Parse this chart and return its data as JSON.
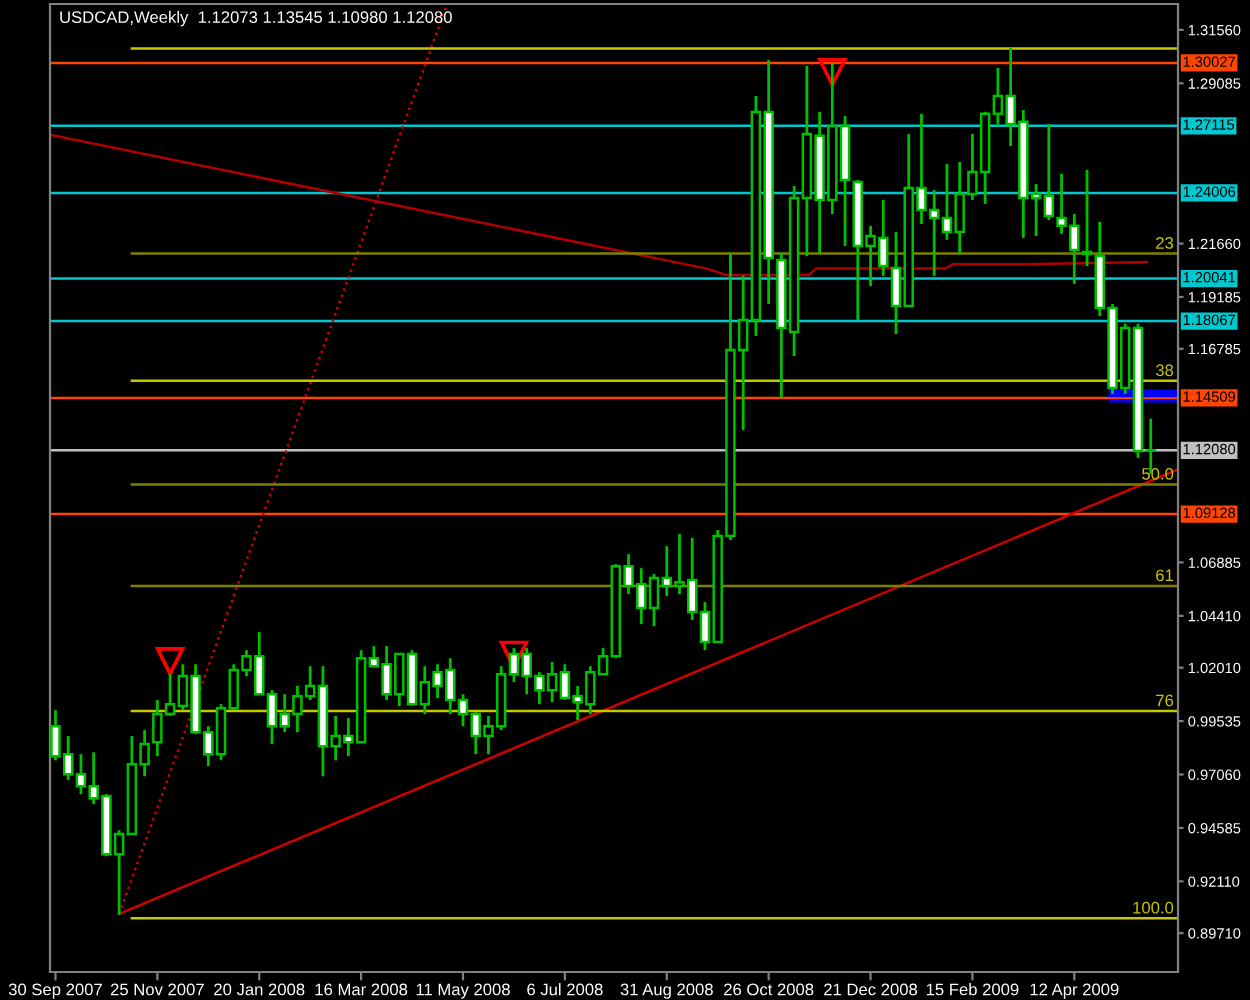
{
  "chart_data": {
    "type": "candlestick",
    "title": "USDCAD,Weekly  1.12073 1.13545 1.10980 1.12080",
    "color": "#00c000",
    "x": [
      "2007-09-30",
      "2007-10-07",
      "2007-10-14",
      "2007-10-21",
      "2007-10-28",
      "2007-11-04",
      "2007-11-11",
      "2007-11-18",
      "2007-11-25",
      "2007-12-02",
      "2007-12-09",
      "2007-12-16",
      "2007-12-23",
      "2007-12-30",
      "2008-01-06",
      "2008-01-13",
      "2008-01-20",
      "2008-01-27",
      "2008-02-03",
      "2008-02-10",
      "2008-02-17",
      "2008-02-24",
      "2008-03-02",
      "2008-03-09",
      "2008-03-16",
      "2008-03-23",
      "2008-03-30",
      "2008-04-06",
      "2008-04-13",
      "2008-04-20",
      "2008-04-27",
      "2008-05-04",
      "2008-05-11",
      "2008-05-18",
      "2008-05-25",
      "2008-06-01",
      "2008-06-08",
      "2008-06-15",
      "2008-06-22",
      "2008-06-29",
      "2008-07-06",
      "2008-07-13",
      "2008-07-20",
      "2008-07-27",
      "2008-08-03",
      "2008-08-10",
      "2008-08-17",
      "2008-08-24",
      "2008-08-31",
      "2008-09-07",
      "2008-09-14",
      "2008-09-21",
      "2008-09-28",
      "2008-10-05",
      "2008-10-12",
      "2008-10-19",
      "2008-10-26",
      "2008-11-02",
      "2008-11-09",
      "2008-11-16",
      "2008-11-23",
      "2008-11-30",
      "2008-12-07",
      "2008-12-14",
      "2008-12-21",
      "2008-12-28",
      "2009-01-04",
      "2009-01-11",
      "2009-01-18",
      "2009-01-25",
      "2009-02-01",
      "2009-02-08",
      "2009-02-15",
      "2009-02-22",
      "2009-03-01",
      "2009-03-08",
      "2009-03-15",
      "2009-03-22",
      "2009-03-29",
      "2009-04-05",
      "2009-04-12",
      "2009-04-19",
      "2009-04-26",
      "2009-05-03",
      "2009-05-10",
      "2009-05-17",
      "2009-05-24"
    ],
    "ohlc": [
      [
        0.993,
        1.0004,
        0.9772,
        0.9791
      ],
      [
        0.98,
        0.9884,
        0.968,
        0.9707
      ],
      [
        0.9707,
        0.98,
        0.9615,
        0.9652
      ],
      [
        0.9652,
        0.9809,
        0.9569,
        0.9596
      ],
      [
        0.9606,
        0.9615,
        0.9328,
        0.9337
      ],
      [
        0.9337,
        0.9448,
        0.9056,
        0.943
      ],
      [
        0.943,
        0.9884,
        0.943,
        0.9754
      ],
      [
        0.9754,
        0.9912,
        0.9698,
        0.9847
      ],
      [
        0.9856,
        1.0051,
        0.9791,
        0.9986
      ],
      [
        0.9986,
        1.0171,
        0.9977,
        1.0032
      ],
      [
        1.0023,
        1.0217,
        1.0004,
        1.0162
      ],
      [
        1.0162,
        1.0217,
        0.9893,
        0.9902
      ],
      [
        0.9902,
        0.993,
        0.9745,
        0.98
      ],
      [
        0.98,
        1.0032,
        0.9772,
        1.0013
      ],
      [
        1.0013,
        1.0217,
        1.0004,
        1.019
      ],
      [
        1.019,
        1.0282,
        1.0162,
        1.0254
      ],
      [
        1.0254,
        1.0366,
        1.0078,
        1.0078
      ],
      [
        1.0078,
        1.0097,
        0.9847,
        0.993
      ],
      [
        0.9986,
        1.0078,
        0.9902,
        0.993
      ],
      [
        0.9986,
        1.0116,
        0.9902,
        1.0069
      ],
      [
        1.0069,
        1.0208,
        1.0051,
        1.0116
      ],
      [
        1.0116,
        1.0208,
        0.9698,
        0.9837
      ],
      [
        0.9837,
        0.9977,
        0.9772,
        0.9884
      ],
      [
        0.9884,
        0.9967,
        0.9791,
        0.9856
      ],
      [
        0.9856,
        1.0282,
        0.9856,
        1.0245
      ],
      [
        1.0245,
        1.0301,
        1.0208,
        1.0208
      ],
      [
        1.0217,
        1.0301,
        1.0051,
        1.0078
      ],
      [
        1.0078,
        1.0264,
        1.0023,
        1.0264
      ],
      [
        1.0264,
        1.0282,
        1.0032,
        1.0032
      ],
      [
        1.0032,
        1.0208,
        0.9986,
        1.0134
      ],
      [
        1.018,
        1.0217,
        1.006,
        1.0116
      ],
      [
        1.019,
        1.0245,
        0.9986,
        1.0051
      ],
      [
        1.0051,
        1.0078,
        0.993,
        0.9986
      ],
      [
        0.9986,
        0.9995,
        0.98,
        0.9884
      ],
      [
        0.9884,
        0.9977,
        0.98,
        0.993
      ],
      [
        0.993,
        1.0208,
        0.9912,
        1.0171
      ],
      [
        1.0264,
        1.0292,
        1.0134,
        1.0171
      ],
      [
        1.0264,
        1.0292,
        1.0078,
        1.0162
      ],
      [
        1.0162,
        1.018,
        1.0032,
        1.0097
      ],
      [
        1.0097,
        1.0227,
        1.0041,
        1.0171
      ],
      [
        1.018,
        1.0217,
        1.0051,
        1.006
      ],
      [
        1.0069,
        1.0116,
        0.9958,
        1.0041
      ],
      [
        1.0032,
        1.0208,
        0.9986,
        1.018
      ],
      [
        1.0171,
        1.0292,
        1.0171,
        1.0254
      ],
      [
        1.0254,
        1.0681,
        1.0245,
        1.0671
      ],
      [
        1.0671,
        1.0727,
        1.0542,
        1.0579
      ],
      [
        1.0588,
        1.0662,
        1.0403,
        1.0477
      ],
      [
        1.0477,
        1.0635,
        1.0393,
        1.0616
      ],
      [
        1.0616,
        1.0764,
        1.0533,
        1.0579
      ],
      [
        1.0579,
        1.082,
        1.0542,
        1.0597
      ],
      [
        1.0607,
        1.0802,
        1.0422,
        1.0459
      ],
      [
        1.0459,
        1.0505,
        1.0282,
        1.032
      ],
      [
        1.032,
        1.0839,
        1.032,
        1.0811
      ],
      [
        1.0811,
        1.2118,
        1.0793,
        1.1673
      ],
      [
        1.1673,
        1.2016,
        1.1302,
        1.1812
      ],
      [
        1.1812,
        1.285,
        1.1738,
        1.2776
      ],
      [
        1.2776,
        1.3017,
        1.1886,
        1.2099
      ],
      [
        1.209,
        1.2118,
        1.145,
        1.1775
      ],
      [
        1.1756,
        1.2433,
        1.1645,
        1.2377
      ],
      [
        1.2377,
        1.2989,
        1.2108,
        1.2674
      ],
      [
        1.2665,
        1.2776,
        1.2118,
        1.2368
      ],
      [
        1.2368,
        1.2998,
        1.2303,
        1.2711
      ],
      [
        1.2711,
        1.2757,
        1.2155,
        1.2461
      ],
      [
        1.2451,
        1.2461,
        1.1812,
        1.2155
      ],
      [
        1.2155,
        1.2248,
        1.1969,
        1.2201
      ],
      [
        1.2192,
        1.2368,
        1.2016,
        1.2062
      ],
      [
        1.2053,
        1.222,
        1.1747,
        1.1877
      ],
      [
        1.1877,
        1.2674,
        1.1877,
        1.2424
      ],
      [
        1.2424,
        1.2767,
        1.2257,
        1.2322
      ],
      [
        1.2322,
        1.2414,
        1.2016,
        1.2285
      ],
      [
        1.2285,
        1.2535,
        1.2183,
        1.222
      ],
      [
        1.222,
        1.2544,
        1.2118,
        1.2396
      ],
      [
        1.2396,
        1.2674,
        1.2368,
        1.2498
      ],
      [
        1.2498,
        1.2776,
        1.235,
        1.2767
      ],
      [
        1.2767,
        1.298,
        1.2711,
        1.285
      ],
      [
        1.285,
        1.3073,
        1.2618,
        1.272
      ],
      [
        1.273,
        1.2785,
        1.2192,
        1.2377
      ],
      [
        1.2396,
        1.2442,
        1.2201,
        1.2377
      ],
      [
        1.2387,
        1.272,
        1.2275,
        1.2294
      ],
      [
        1.2285,
        1.2489,
        1.2211,
        1.2248
      ],
      [
        1.2248,
        1.2303,
        1.1979,
        1.2136
      ],
      [
        1.2118,
        1.2507,
        1.2062,
        1.2127
      ],
      [
        1.2108,
        1.2266,
        1.183,
        1.1867
      ],
      [
        1.1867,
        1.1886,
        1.1469,
        1.1497
      ],
      [
        1.1497,
        1.1794,
        1.1469,
        1.1775
      ],
      [
        1.1775,
        1.1794,
        1.1173,
        1.1205
      ],
      [
        1.12073,
        1.13545,
        1.1098,
        1.1208
      ]
    ],
    "colors": [
      "#ffffff",
      "#ffffff",
      "#ffffff",
      "#ffffff",
      "#ffffff",
      "#000000",
      "#000000",
      "#000000",
      "#000000",
      "#000000",
      "#000000",
      "#ffffff",
      "#ffffff",
      "#000000",
      "#000000",
      "#000000",
      "#ffffff",
      "#ffffff",
      "#ffffff",
      "#000000",
      "#000000",
      "#ffffff",
      "#000000",
      "#ffffff",
      "#000000",
      "#ffffff",
      "#ffffff",
      "#000000",
      "#ffffff",
      "#000000",
      "#ffffff",
      "#ffffff",
      "#ffffff",
      "#ffffff",
      "#000000",
      "#000000",
      "#ffffff",
      "#ffffff",
      "#ffffff",
      "#000000",
      "#ffffff",
      "#ffffff",
      "#000000",
      "#000000",
      "#000000",
      "#ffffff",
      "#ffffff",
      "#000000",
      "#ffffff",
      "#000000",
      "#ffffff",
      "#ffffff",
      "#000000",
      "#000000",
      "#000000",
      "#000000",
      "#ffffff",
      "#ffffff",
      "#000000",
      "#000000",
      "#ffffff",
      "#000000",
      "#ffffff",
      "#ffffff",
      "#000000",
      "#ffffff",
      "#ffffff",
      "#000000",
      "#ffffff",
      "#ffffff",
      "#ffffff",
      "#000000",
      "#000000",
      "#000000",
      "#000000",
      "#ffffff",
      "#ffffff",
      "#ffffff",
      "#ffffff",
      "#ffffff",
      "#ffffff",
      "#000000",
      "#ffffff",
      "#ffffff",
      "#000000",
      "#ffffff",
      "#000000"
    ],
    "series": [
      {
        "type": "line",
        "color": "#d00000",
        "x": [
          "2007-11-04",
          "2009-06-08"
        ],
        "values": [
          0.906,
          1.112
        ]
      },
      {
        "type": "line",
        "color": "#d00000",
        "line_style": "dotted",
        "x": [
          "2007-11-04",
          "2008-05-02"
        ],
        "values": [
          0.906,
          1.327
        ]
      },
      {
        "type": "line",
        "color": "#b00000",
        "x": [
          "2007-09-27",
          "2008-09-22",
          "2008-10-03",
          "2008-11-17",
          "2008-11-21",
          "2009-01-31",
          "2009-02-04",
          "2009-03-12",
          "2009-03-16",
          "2009-05-22"
        ],
        "values": [
          1.267,
          1.205,
          1.202,
          1.202,
          1.205,
          1.205,
          1.207,
          1.207,
          1.207,
          1.208
        ]
      },
      {
        "type": "line",
        "color": "#0000ff",
        "x": [
          "2009-05-01",
          "2009-06-08"
        ],
        "values": [
          1.146,
          1.146
        ],
        "lower": [
          1.143,
          1.143
        ],
        "upper": [
          1.149,
          1.149
        ]
      },
      {
        "type": "line",
        "color": "#c8c800",
        "x": [
          "2007-11-11",
          "2009-06-08"
        ],
        "values": [
          1.307,
          1.307
        ]
      },
      {
        "type": "line",
        "color": "#808000",
        "x": [
          "2007-11-11",
          "2009-06-08"
        ],
        "values": [
          1.212,
          1.212
        ]
      },
      {
        "type": "line",
        "color": "#c8c800",
        "x": [
          "2007-11-11",
          "2009-06-08"
        ],
        "values": [
          1.153,
          1.153
        ]
      },
      {
        "type": "line",
        "color": "#808000",
        "x": [
          "2007-11-11",
          "2009-06-08"
        ],
        "values": [
          1.105,
          1.105
        ]
      },
      {
        "type": "line",
        "color": "#808000",
        "x": [
          "2007-11-11",
          "2009-06-08"
        ],
        "values": [
          1.058,
          1.058
        ]
      },
      {
        "type": "line",
        "color": "#c8c800",
        "x": [
          "2007-11-11",
          "2009-06-08"
        ],
        "values": [
          1.0,
          1.0
        ]
      },
      {
        "type": "line",
        "color": "#c8c800",
        "x": [
          "2007-11-11",
          "2009-06-08"
        ],
        "values": [
          0.904,
          0.904
        ]
      },
      {
        "type": "scatter",
        "color": "#ff0000",
        "marker": "triangle",
        "x": [
          "2007-12-02",
          "2008-06-08",
          "2008-11-30"
        ],
        "values": [
          1.023,
          1.026,
          1.296
        ]
      }
    ],
    "ref_lines": [
      {
        "axis": "y",
        "value": 1.30027,
        "label": "1.30027",
        "color": "#ff4500"
      },
      {
        "axis": "y",
        "value": 1.27115,
        "label": "1.27115",
        "color": "#00c8d0"
      },
      {
        "axis": "y",
        "value": 1.24006,
        "label": "1.24006",
        "color": "#00c8d0"
      },
      {
        "axis": "y",
        "value": 1.20041,
        "label": "1.20041",
        "color": "#00c8d0"
      },
      {
        "axis": "y",
        "value": 1.18067,
        "label": "1.18067",
        "color": "#00c8d0"
      },
      {
        "axis": "y",
        "value": 1.14509,
        "label": "1.14509",
        "color": "#ff4500"
      },
      {
        "axis": "y",
        "value": 1.1208,
        "label": "1.12080",
        "color": "#c0c0c0"
      },
      {
        "axis": "y",
        "value": 1.09128,
        "label": "1.09128",
        "color": "#ff4500"
      }
    ],
    "annotations": [
      {
        "text": "23",
        "x": "2009-06-08",
        "y": 1.212
      },
      {
        "text": "38",
        "x": "2009-06-08",
        "y": 1.153
      },
      {
        "text": "50.0",
        "x": "2009-06-08",
        "y": 1.105
      },
      {
        "text": "61",
        "x": "2009-06-08",
        "y": 1.058
      },
      {
        "text": "76",
        "x": "2009-06-08",
        "y": 1.0
      },
      {
        "text": "100.0",
        "x": "2009-06-08",
        "y": 0.904
      }
    ],
    "xlim": [
      "2007-09-27",
      "2009-06-08"
    ],
    "xticks": [
      {
        "value": "2007-09-30",
        "label": "30 Sep 2007"
      },
      {
        "value": "2007-11-25",
        "label": "25 Nov 2007"
      },
      {
        "value": "2008-01-20",
        "label": "20 Jan 2008"
      },
      {
        "value": "2008-03-16",
        "label": "16 Mar 2008"
      },
      {
        "value": "2008-05-11",
        "label": "11 May 2008"
      },
      {
        "value": "2008-07-06",
        "label": "6 Jul 2008"
      },
      {
        "value": "2008-08-31",
        "label": "31 Aug 2008"
      },
      {
        "value": "2008-10-26",
        "label": "26 Oct 2008"
      },
      {
        "value": "2008-12-21",
        "label": "21 Dec 2008"
      },
      {
        "value": "2009-02-15",
        "label": "15 Feb 2009"
      },
      {
        "value": "2009-04-12",
        "label": "12 Apr 2009"
      }
    ],
    "ylim": [
      0.8791,
      1.3276
    ],
    "yticks": [
      {
        "value": 1.3156,
        "label": "1.31560"
      },
      {
        "value": 1.29085,
        "label": "1.29085"
      },
      {
        "value": 1.2166,
        "label": "1.21660"
      },
      {
        "value": 1.19185,
        "label": "1.19185"
      },
      {
        "value": 1.16785,
        "label": "1.16785"
      },
      {
        "value": 1.06885,
        "label": "1.06885"
      },
      {
        "value": 1.0441,
        "label": "1.04410"
      },
      {
        "value": 1.0201,
        "label": "1.02010"
      },
      {
        "value": 0.99535,
        "label": "0.99535"
      },
      {
        "value": 0.9706,
        "label": "0.97060"
      },
      {
        "value": 0.94585,
        "label": "0.94585"
      },
      {
        "value": 0.9211,
        "label": "0.92110"
      },
      {
        "value": 0.8971,
        "label": "0.89710"
      }
    ]
  }
}
